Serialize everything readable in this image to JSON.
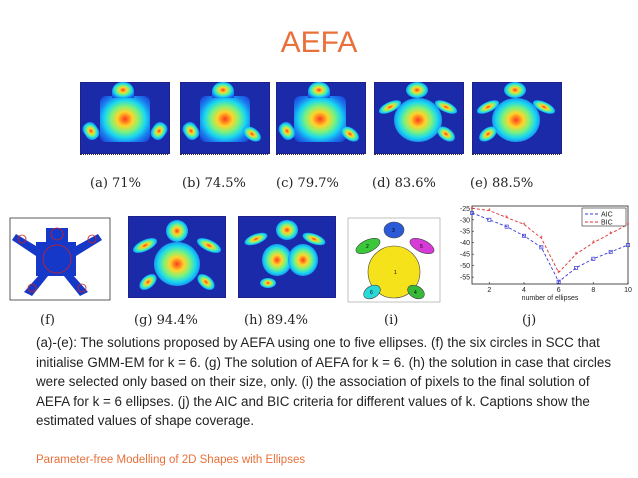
{
  "slide": {
    "title": "AEFA",
    "footer": "Parameter-free Modelling of 2D Shapes with Ellipses",
    "description": "(a)-(e): The solutions proposed by AEFA using one to five ellipses. (f) the six circles in SCC that initialise GMM-EM for k = 6. (g) The solution of AEFA for k = 6. (h) the solution in case that circles were selected only based on their size, only. (i) the association of pixels to the final solution of AEFA for k = 6 ellipses. (j) the AIC and BIC criteria for different values of k. Captions show the estimated values of shape coverage."
  },
  "figures": {
    "captions": {
      "a": "(a) 71%",
      "b": "(b) 74.5%",
      "c": "(c) 79.7%",
      "d": "(d) 83.6%",
      "e": "(e) 88.5%",
      "f": "(f)",
      "g": "(g) 94.4%",
      "h": "(h) 89.4%",
      "i": "(i)",
      "j": "(j)"
    },
    "cluster_labels": [
      "1",
      "2",
      "3",
      "4",
      "5",
      "6"
    ]
  },
  "chart_data": {
    "type": "line",
    "x": [
      1,
      2,
      3,
      4,
      5,
      6,
      7,
      8,
      9,
      10
    ],
    "series": [
      {
        "name": "AIC",
        "values": [
          -27,
          -30,
          -33,
          -37,
          -42,
          -57,
          -51,
          -47,
          -44,
          -41
        ],
        "color": "#3a3ad8",
        "marker": "square"
      },
      {
        "name": "BIC",
        "values": [
          -25,
          -26,
          -29,
          -32,
          -38,
          -53,
          -45,
          -40,
          -36,
          -32
        ],
        "color": "#e03030",
        "marker": "asterisk"
      }
    ],
    "xlabel": "number of ellipses",
    "ylabel": "",
    "xlim": [
      1,
      10
    ],
    "ylim": [
      -58,
      -24
    ],
    "xticks": [
      2,
      4,
      6,
      8,
      10
    ],
    "yticks": [
      -25,
      -30,
      -35,
      -40,
      -45,
      -50,
      -55
    ],
    "legend_position": "top-right",
    "grid": false
  }
}
